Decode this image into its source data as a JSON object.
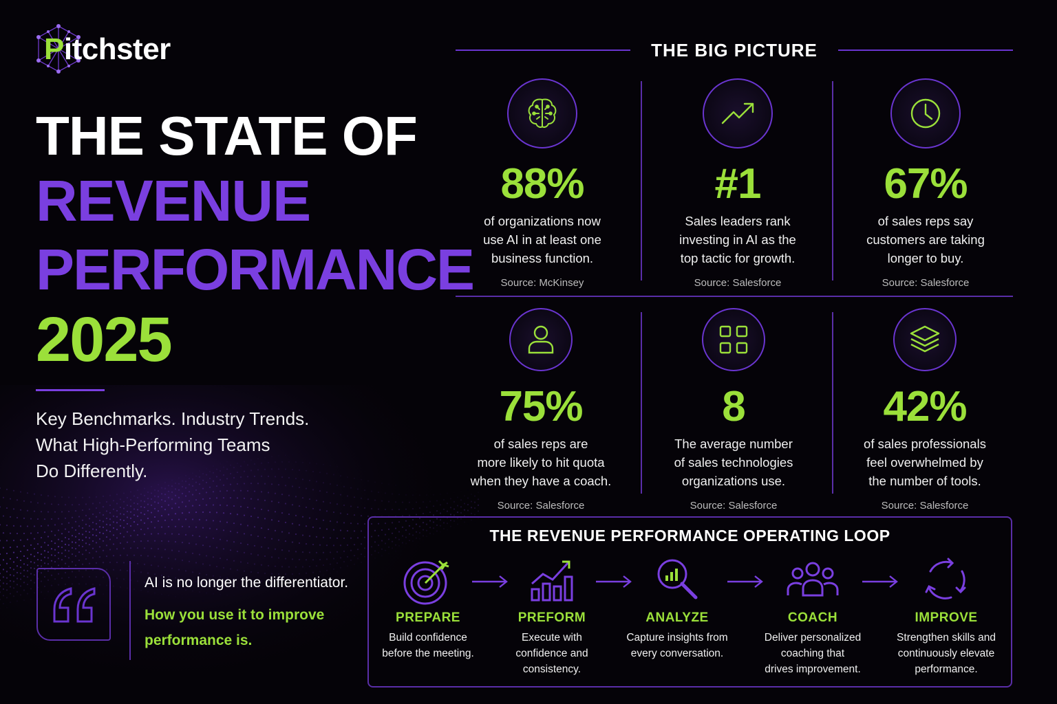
{
  "brand": {
    "logo_letter": "P",
    "logo_rest": "itchster"
  },
  "hero": {
    "line1": "THE STATE OF",
    "line2": "REVENUE",
    "line3": "PERFORMANCE",
    "line4": "2025",
    "subtitle_lines": [
      "Key Benchmarks. Industry Trends.",
      "What High-Performing Teams",
      "Do Differently."
    ]
  },
  "quote": {
    "line1": "AI is no longer the differentiator.",
    "line2": "How you use it to improve performance is."
  },
  "big_picture": {
    "title": "THE BIG PICTURE",
    "stats": [
      {
        "icon": "brain-icon",
        "value": "88%",
        "desc": [
          "of organizations now",
          "use AI in at least one",
          "business function."
        ],
        "source": "Source: McKinsey"
      },
      {
        "icon": "trend-up-icon",
        "value": "#1",
        "desc": [
          "Sales leaders rank",
          "investing in AI as the",
          "top tactic for growth."
        ],
        "source": "Source: Salesforce"
      },
      {
        "icon": "clock-icon",
        "value": "67%",
        "desc": [
          "of sales reps say",
          "customers are taking",
          "longer to buy."
        ],
        "source": "Source: Salesforce"
      },
      {
        "icon": "user-icon",
        "value": "75%",
        "desc": [
          "of sales reps are",
          "more likely to hit quota",
          "when they have a coach."
        ],
        "source": "Source: Salesforce"
      },
      {
        "icon": "apps-grid-icon",
        "value": "8",
        "desc": [
          "The average number",
          "of sales technologies",
          "organizations use."
        ],
        "source": "Source: Salesforce"
      },
      {
        "icon": "layers-icon",
        "value": "42%",
        "desc": [
          "of sales professionals",
          "feel overwhelmed by",
          "the number of tools."
        ],
        "source": "Source: Salesforce"
      }
    ]
  },
  "loop": {
    "title": "THE REVENUE PERFORMANCE OPERATING LOOP",
    "steps": [
      {
        "icon": "target-icon",
        "name": "PREPARE",
        "desc": [
          "Build confidence",
          "before the meeting."
        ]
      },
      {
        "icon": "growth-chart-icon",
        "name": "PREFORM",
        "desc": [
          "Execute with",
          "confidence and",
          "consistency."
        ]
      },
      {
        "icon": "magnify-chart-icon",
        "name": "ANALYZE",
        "desc": [
          "Capture insights from",
          "every conversation."
        ]
      },
      {
        "icon": "team-icon",
        "name": "COACH",
        "desc": [
          "Deliver personalized",
          "coaching that",
          "drives improvement."
        ]
      },
      {
        "icon": "cycle-icon",
        "name": "IMPROVE",
        "desc": [
          "Strengthen skills and",
          "continuously elevate",
          "performance."
        ]
      }
    ]
  },
  "colors": {
    "purple": "#7a3fe0",
    "green": "#9be03a",
    "background": "#050308"
  }
}
